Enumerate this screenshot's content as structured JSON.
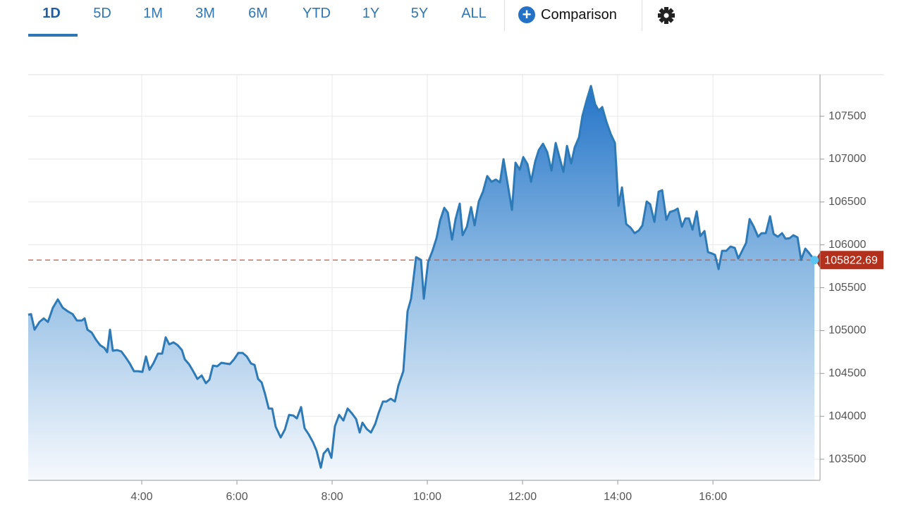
{
  "toolbar": {
    "ranges": [
      "1D",
      "5D",
      "1M",
      "3M",
      "6M",
      "YTD",
      "1Y",
      "5Y",
      "ALL"
    ],
    "selected": 0,
    "comparison": "Comparison"
  },
  "chart_data": {
    "type": "area",
    "color": "#2e7ab6",
    "grid": true,
    "xlim": [
      1.615,
      18.25
    ],
    "ylim": [
      103254,
      107985
    ],
    "xticks": [
      {
        "value": 4,
        "label": "4:00"
      },
      {
        "value": 6,
        "label": "6:00"
      },
      {
        "value": 8,
        "label": "8:00"
      },
      {
        "value": 10,
        "label": "10:00"
      },
      {
        "value": 12,
        "label": "12:00"
      },
      {
        "value": 14,
        "label": "14:00"
      },
      {
        "value": 16,
        "label": "16:00"
      }
    ],
    "yticks": [
      103500,
      104000,
      104500,
      105000,
      105500,
      106000,
      106500,
      107000,
      107500
    ],
    "x": [
      1.615,
      1.674,
      1.748,
      1.852,
      1.941,
      2.03,
      2.133,
      2.237,
      2.341,
      2.444,
      2.548,
      2.637,
      2.741,
      2.8,
      2.859,
      2.948,
      3.037,
      3.126,
      3.215,
      3.274,
      3.333,
      3.393,
      3.481,
      3.57,
      3.659,
      3.748,
      3.837,
      3.926,
      4.015,
      4.089,
      4.163,
      4.252,
      4.341,
      4.43,
      4.504,
      4.578,
      4.667,
      4.756,
      4.844,
      4.904,
      4.993,
      5.081,
      5.17,
      5.259,
      5.348,
      5.422,
      5.496,
      5.585,
      5.674,
      5.763,
      5.852,
      5.941,
      6.03,
      6.119,
      6.207,
      6.296,
      6.37,
      6.444,
      6.519,
      6.593,
      6.667,
      6.741,
      6.815,
      6.919,
      7.007,
      7.096,
      7.185,
      7.259,
      7.348,
      7.422,
      7.511,
      7.6,
      7.674,
      7.763,
      7.822,
      7.911,
      7.985,
      8.059,
      8.148,
      8.237,
      8.326,
      8.415,
      8.504,
      8.578,
      8.637,
      8.726,
      8.815,
      8.904,
      8.978,
      9.067,
      9.141,
      9.23,
      9.319,
      9.393,
      9.496,
      9.585,
      9.659,
      9.763,
      9.867,
      9.926,
      10.015,
      10.104,
      10.193,
      10.267,
      10.356,
      10.43,
      10.519,
      10.593,
      10.681,
      10.741,
      10.83,
      10.919,
      10.993,
      11.081,
      11.17,
      11.259,
      11.348,
      11.437,
      11.526,
      11.6,
      11.689,
      11.778,
      11.852,
      11.941,
      12.015,
      12.104,
      12.178,
      12.267,
      12.341,
      12.43,
      12.519,
      12.607,
      12.696,
      12.77,
      12.859,
      12.933,
      13.022,
      13.096,
      13.185,
      13.259,
      13.348,
      13.437,
      13.526,
      13.6,
      13.674,
      13.763,
      13.852,
      13.941,
      14.015,
      14.089,
      14.178,
      14.267,
      14.356,
      14.444,
      14.519,
      14.607,
      14.681,
      14.77,
      14.859,
      14.933,
      15.022,
      15.096,
      15.185,
      15.259,
      15.348,
      15.422,
      15.496,
      15.57,
      15.659,
      15.733,
      15.822,
      15.896,
      15.985,
      16.044,
      16.119,
      16.193,
      16.281,
      16.37,
      16.459,
      16.533,
      16.607,
      16.696,
      16.77,
      16.859,
      16.948,
      17.022,
      17.111,
      17.2,
      17.274,
      17.363,
      17.452,
      17.526,
      17.615,
      17.689,
      17.778,
      17.852,
      17.941,
      18.03,
      18.133
    ],
    "values": [
      105184,
      105192,
      105011,
      105101,
      105142,
      105101,
      105266,
      105364,
      105266,
      105225,
      105192,
      105118,
      105118,
      105142,
      105011,
      104978,
      104896,
      104830,
      104798,
      104748,
      105011,
      104765,
      104773,
      104757,
      104691,
      104617,
      104526,
      104526,
      104518,
      104699,
      104543,
      104625,
      104732,
      104732,
      104921,
      104839,
      104863,
      104830,
      104773,
      104666,
      104609,
      104526,
      104436,
      104477,
      104387,
      104428,
      104592,
      104584,
      104625,
      104617,
      104609,
      104666,
      104740,
      104740,
      104699,
      104617,
      104600,
      104436,
      104395,
      104255,
      104091,
      104091,
      103878,
      103754,
      103845,
      104017,
      104009,
      103976,
      104108,
      103861,
      103787,
      103697,
      103598,
      103401,
      103565,
      103623,
      103516,
      103886,
      104017,
      103951,
      104091,
      104034,
      103968,
      103812,
      103927,
      103853,
      103812,
      103910,
      104042,
      104173,
      104173,
      104206,
      104173,
      104362,
      104526,
      105225,
      105372,
      105857,
      105824,
      105372,
      105800,
      105923,
      106079,
      106284,
      106432,
      106375,
      106062,
      106301,
      106481,
      106112,
      106210,
      106440,
      106227,
      106506,
      106621,
      106802,
      106736,
      106761,
      106728,
      106999,
      106703,
      106407,
      106958,
      106876,
      107023,
      106941,
      106736,
      106974,
      107105,
      107179,
      107081,
      106867,
      107188,
      107032,
      106851,
      107155,
      106949,
      107138,
      107253,
      107508,
      107689,
      107853,
      107639,
      107565,
      107607,
      107434,
      107294,
      107188,
      106457,
      106670,
      106243,
      106202,
      106136,
      106169,
      106227,
      106506,
      106473,
      106268,
      106621,
      106637,
      106292,
      106383,
      106399,
      106424,
      106210,
      106309,
      106309,
      106177,
      106391,
      106103,
      106161,
      105915,
      105898,
      105882,
      105717,
      105931,
      105931,
      105980,
      105964,
      105841,
      105923,
      106021,
      106301,
      106210,
      106095,
      106136,
      106136,
      106333,
      106128,
      106095,
      106136,
      106071,
      106079,
      106112,
      106087,
      105824,
      105956,
      105898,
      105822.69
    ]
  }
}
